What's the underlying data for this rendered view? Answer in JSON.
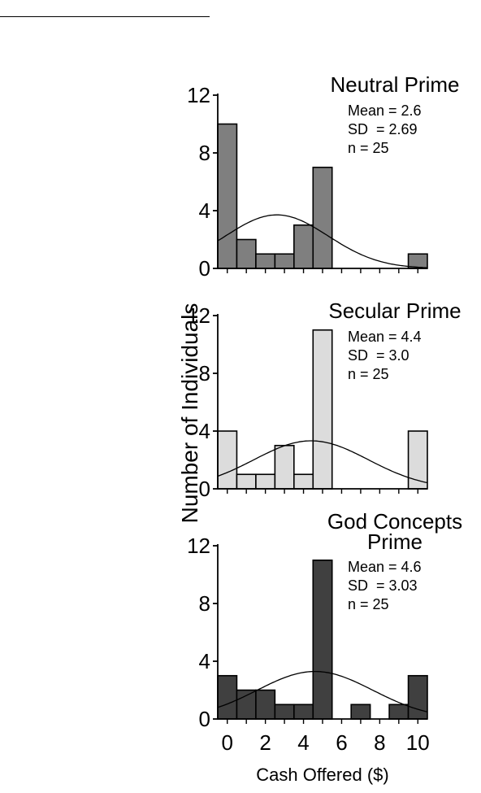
{
  "chart_data": [
    {
      "type": "bar",
      "title": "Neutral Prime",
      "stats": [
        "Mean = 2.6",
        "SD  = 2.69",
        "n = 25"
      ],
      "categories": [
        0,
        1,
        2,
        3,
        4,
        5,
        6,
        7,
        8,
        9,
        10
      ],
      "values": [
        10,
        2,
        1,
        1,
        3,
        7,
        0,
        0,
        0,
        0,
        1
      ],
      "mean": 2.6,
      "sd": 2.69,
      "n": 25,
      "bar_color": "#7f7f7f",
      "ylim": [
        0,
        12
      ],
      "yticks": [
        "0",
        "4",
        "8",
        "12"
      ]
    },
    {
      "type": "bar",
      "title": "Secular Prime",
      "stats": [
        "Mean = 4.4",
        "SD  = 3.0",
        "n = 25"
      ],
      "categories": [
        0,
        1,
        2,
        3,
        4,
        5,
        6,
        7,
        8,
        9,
        10
      ],
      "values": [
        4,
        1,
        1,
        3,
        1,
        11,
        0,
        0,
        0,
        0,
        4
      ],
      "mean": 4.4,
      "sd": 3.0,
      "n": 25,
      "bar_color": "#dcdcdc",
      "ylim": [
        0,
        12
      ],
      "yticks": [
        "0",
        "4",
        "8",
        "12"
      ]
    },
    {
      "type": "bar",
      "title": "God Concepts",
      "title_line2": "Prime",
      "stats": [
        "Mean = 4.6",
        "SD  = 3.03",
        "n = 25"
      ],
      "categories": [
        0,
        1,
        2,
        3,
        4,
        5,
        6,
        7,
        8,
        9,
        10
      ],
      "values": [
        3,
        2,
        2,
        1,
        1,
        11,
        0,
        1,
        0,
        1,
        3
      ],
      "mean": 4.6,
      "sd": 3.03,
      "n": 25,
      "bar_color": "#404040",
      "ylim": [
        0,
        12
      ],
      "yticks": [
        "0",
        "4",
        "8",
        "12"
      ]
    }
  ],
  "figure": {
    "ylabel": "Number of Individuals",
    "xlabel": "Cash Offered ($)",
    "xticks": [
      "0",
      "2",
      "4",
      "6",
      "8",
      "10"
    ]
  }
}
